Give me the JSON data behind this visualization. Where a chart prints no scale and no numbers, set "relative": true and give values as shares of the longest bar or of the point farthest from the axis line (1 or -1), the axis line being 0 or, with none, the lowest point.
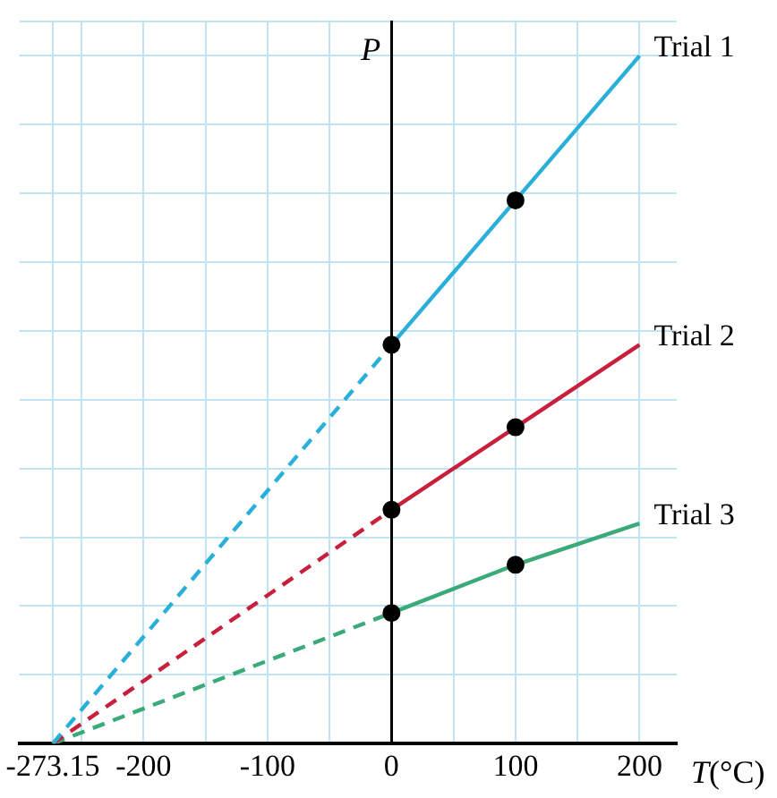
{
  "chart_data": {
    "type": "line",
    "relative": true,
    "xlabel": "T(°C)",
    "ylabel": "P",
    "xlim": [
      -300,
      230
    ],
    "xticks": [
      -273.15,
      {
        "value": -250,
        "label": null
      },
      -200,
      {
        "value": -150,
        "label": null
      },
      -100,
      {
        "value": -50,
        "label": null
      },
      0,
      {
        "value": 50,
        "label": null
      },
      100,
      {
        "value": 150,
        "label": null
      },
      200
    ],
    "grid": true,
    "legend": false,
    "tick_labels": "x",
    "series": [
      {
        "name": "Trial 1",
        "color": "#2ab0d8",
        "type": "line",
        "line_style": "solid",
        "marker": "none",
        "x": [
          0,
          100,
          200
        ],
        "values": [
          0.58,
          0.79,
          1.0
        ]
      },
      {
        "name": "Trial 2",
        "color": "#c8203c",
        "type": "line",
        "line_style": "solid",
        "marker": "none",
        "x": [
          0,
          100,
          200
        ],
        "values": [
          0.34,
          0.46,
          0.58
        ]
      },
      {
        "name": "Trial 3",
        "color": "#3aaa78",
        "type": "line",
        "line_style": "solid",
        "marker": "none",
        "x": [
          0,
          100,
          200
        ],
        "values": [
          0.19,
          0.26,
          0.32
        ]
      },
      {
        "color": "#2ab0d8",
        "type": "line",
        "line_style": "dashed",
        "marker": "none",
        "x": [
          -273.15,
          0
        ],
        "values": [
          0,
          0.58
        ]
      },
      {
        "color": "#c8203c",
        "type": "line",
        "line_style": "dashed",
        "marker": "none",
        "x": [
          -273.15,
          0
        ],
        "values": [
          0,
          0.34
        ]
      },
      {
        "color": "#3aaa78",
        "type": "line",
        "line_style": "dashed",
        "marker": "none",
        "x": [
          -273.15,
          0
        ],
        "values": [
          0,
          0.19
        ]
      },
      {
        "color": "#000000",
        "type": "scatter",
        "marker": "circle",
        "x": [
          0,
          100,
          0,
          100,
          0,
          100
        ],
        "values": [
          0.58,
          0.79,
          0.34,
          0.46,
          0.19,
          0.26
        ]
      }
    ]
  }
}
